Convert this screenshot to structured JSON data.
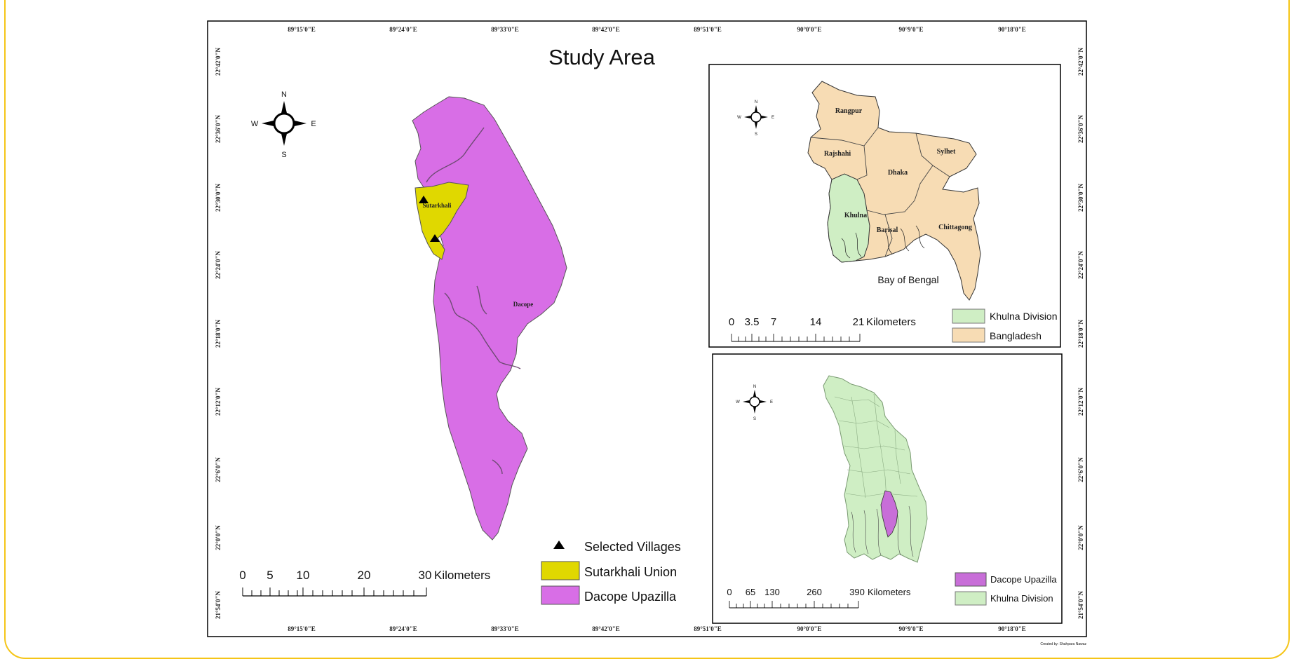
{
  "title": "Study Area",
  "credit": "Created by: Shahpara Nawaz",
  "graticule": {
    "lon": [
      "89°15'0\"E",
      "89°24'0\"E",
      "89°33'0\"E",
      "89°42'0\"E",
      "89°51'0\"E",
      "90°0'0\"E",
      "90°9'0\"E",
      "90°18'0\"E"
    ],
    "lat": [
      "22°42'0\"N",
      "22°36'0\"N",
      "22°30'0\"N",
      "22°24'0\"N",
      "22°18'0\"N",
      "22°12'0\"N",
      "22°6'0\"N",
      "22°0'0\"N",
      "21°54'0\"N"
    ]
  },
  "compass": {
    "n": "N",
    "s": "S",
    "e": "E",
    "w": "W"
  },
  "main_map": {
    "labels": {
      "union": "Sutarkhali",
      "upazila": "Dacope"
    },
    "scale": {
      "ticks": [
        "0",
        "5",
        "10",
        "20",
        "30"
      ],
      "unit": "Kilometers"
    },
    "legend": [
      {
        "label": "Selected Villages",
        "symbol": "triangle",
        "color": "#000000"
      },
      {
        "label": "Sutarkhali Union",
        "symbol": "box",
        "color": "#e0d800"
      },
      {
        "label": "Dacope Upazilla",
        "symbol": "box",
        "color": "#d86ee6"
      }
    ],
    "colors": {
      "upazila": "#d86ee6",
      "union": "#e0d800"
    }
  },
  "inset_bangladesh": {
    "divisions": [
      "Rangpur",
      "Rajshahi",
      "Dhaka",
      "Sylhet",
      "Khulna",
      "Barisal",
      "Chittagong"
    ],
    "sea_label": "Bay of Bengal",
    "scale": {
      "ticks": [
        "0",
        "3.5",
        "7",
        "14",
        "21"
      ],
      "unit": "Kilometers"
    },
    "legend": [
      {
        "label": "Khulna Division",
        "color": "#cfeec4"
      },
      {
        "label": "Bangladesh",
        "color": "#f7dcb4"
      }
    ]
  },
  "inset_khulna": {
    "scale": {
      "ticks": [
        "0",
        "65",
        "130",
        "260",
        "390"
      ],
      "unit": "Kilometers"
    },
    "legend": [
      {
        "label": "Dacope Upazilla",
        "color": "#c86ed8"
      },
      {
        "label": "Khulna Division",
        "color": "#cfeec4"
      }
    ]
  }
}
